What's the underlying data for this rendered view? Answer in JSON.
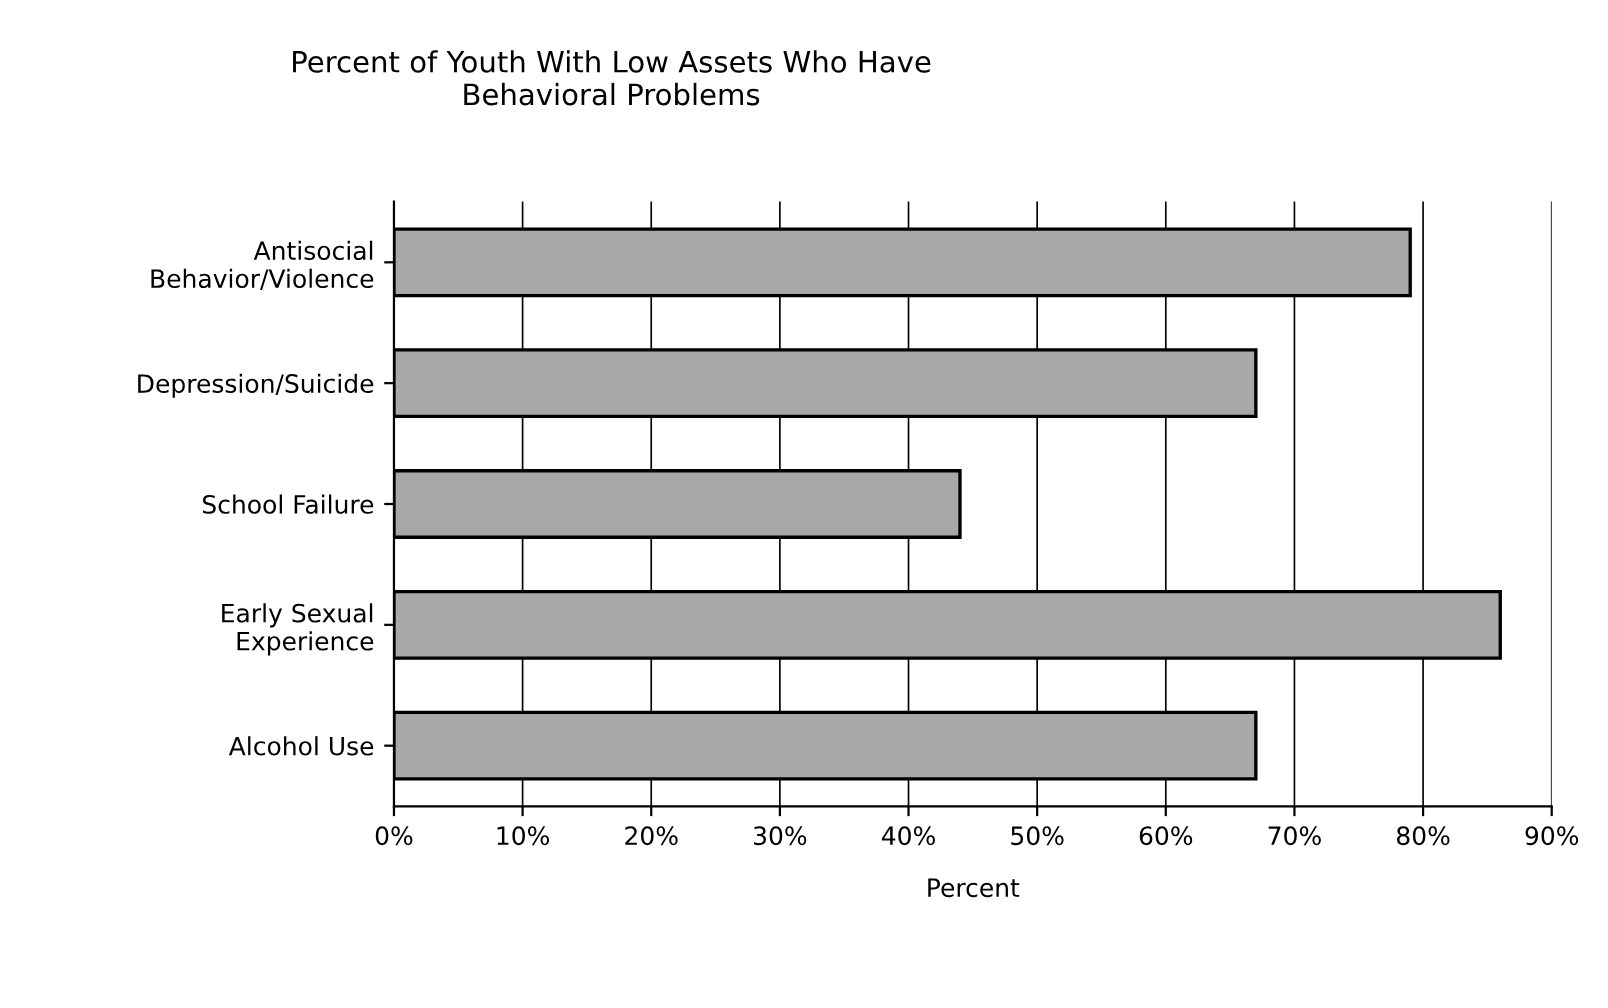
{
  "chart_data": {
    "type": "bar",
    "orientation": "horizontal",
    "title": "Percent of Youth With Low Assets Who Have\nBehavioral Problems",
    "categories": [
      "Antisocial\nBehavior/Violence",
      "Depression/Suicide",
      "School Failure",
      "Early Sexual\nExperience",
      "Alcohol Use"
    ],
    "values": [
      79,
      67,
      44,
      86,
      67
    ],
    "color": "#a8a8a8",
    "xlabel": "Percent",
    "xlim": [
      0,
      90
    ],
    "xticks": [
      {
        "value": 0,
        "label": "0%"
      },
      {
        "value": 10,
        "label": "10%"
      },
      {
        "value": 20,
        "label": "20%"
      },
      {
        "value": 30,
        "label": "30%"
      },
      {
        "value": 40,
        "label": "40%"
      },
      {
        "value": 50,
        "label": "50%"
      },
      {
        "value": 60,
        "label": "60%"
      },
      {
        "value": 70,
        "label": "70%"
      },
      {
        "value": 80,
        "label": "80%"
      },
      {
        "value": 90,
        "label": "90%"
      }
    ],
    "grid": "x"
  }
}
